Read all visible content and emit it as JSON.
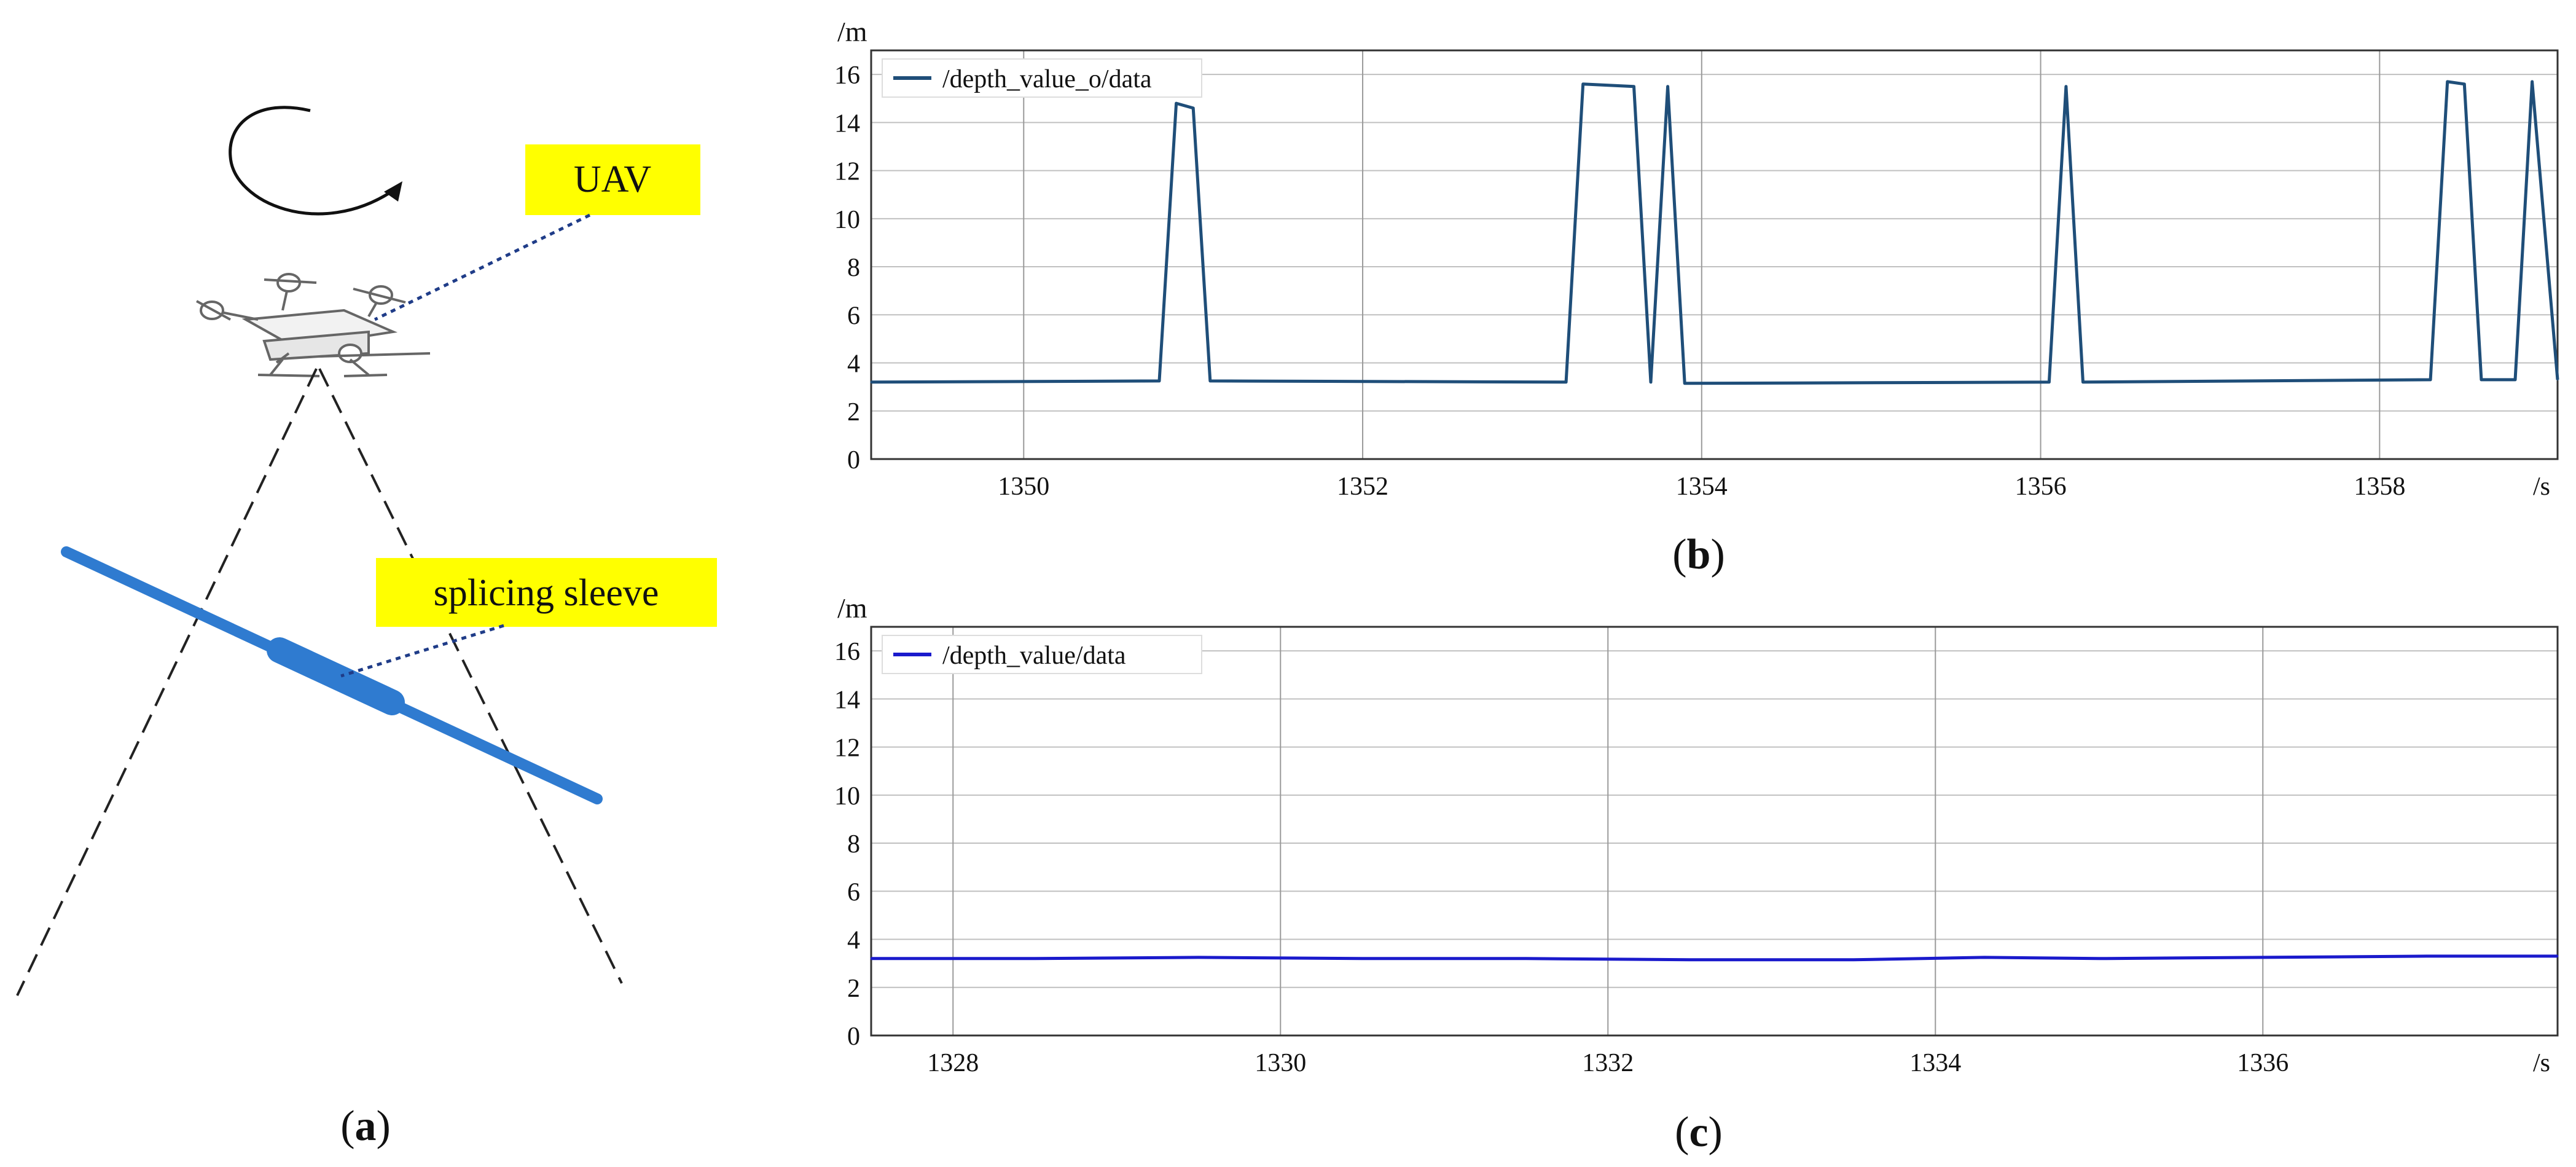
{
  "panel_a": {
    "uav_label": "UAV",
    "sleeve_label": "splicing sleeve",
    "caption_letter": "a",
    "label_bg_color": "#ffff00",
    "cable_color": "#2f7bd0",
    "icons": [
      "rotation-arrow-icon",
      "drone-icon"
    ]
  },
  "chart_data": [
    {
      "type": "line",
      "panel": "b",
      "caption_letter": "b",
      "x_unit": "/s",
      "y_unit": "/m",
      "xlim": [
        1349.1,
        1359.05
      ],
      "ylim": [
        0,
        17
      ],
      "xticks": [
        1350,
        1352,
        1354,
        1356,
        1358
      ],
      "yticks": [
        0,
        2,
        4,
        6,
        8,
        10,
        12,
        14,
        16
      ],
      "grid": true,
      "legend_position": "top-left",
      "series": [
        {
          "name": "/depth_value_o/data",
          "color": "#1f4e79",
          "x": [
            1349.1,
            1350.8,
            1350.9,
            1351.0,
            1351.1,
            1353.2,
            1353.3,
            1353.6,
            1353.7,
            1353.8,
            1353.9,
            1356.05,
            1356.15,
            1356.25,
            1358.3,
            1358.4,
            1358.5,
            1358.6,
            1358.8,
            1358.9,
            1359.05
          ],
          "values": [
            3.2,
            3.25,
            14.8,
            14.6,
            3.25,
            3.2,
            15.6,
            15.5,
            3.2,
            15.5,
            3.15,
            3.2,
            15.5,
            3.2,
            3.3,
            15.7,
            15.6,
            3.3,
            3.3,
            15.7,
            3.3
          ]
        }
      ]
    },
    {
      "type": "line",
      "panel": "c",
      "caption_letter": "c",
      "x_unit": "/s",
      "y_unit": "/m",
      "xlim": [
        1327.5,
        1337.8
      ],
      "ylim": [
        0,
        17
      ],
      "xticks": [
        1328,
        1330,
        1332,
        1334,
        1336
      ],
      "yticks": [
        0,
        2,
        4,
        6,
        8,
        10,
        12,
        14,
        16
      ],
      "grid": true,
      "legend_position": "top-left",
      "series": [
        {
          "name": "/depth_value/data",
          "color": "#1a1acc",
          "x": [
            1327.5,
            1328.5,
            1329.5,
            1330.5,
            1331.5,
            1332.5,
            1333.5,
            1334.3,
            1335.0,
            1336.0,
            1337.0,
            1337.8
          ],
          "values": [
            3.2,
            3.2,
            3.25,
            3.2,
            3.2,
            3.15,
            3.15,
            3.25,
            3.2,
            3.25,
            3.3,
            3.3
          ]
        }
      ]
    }
  ]
}
